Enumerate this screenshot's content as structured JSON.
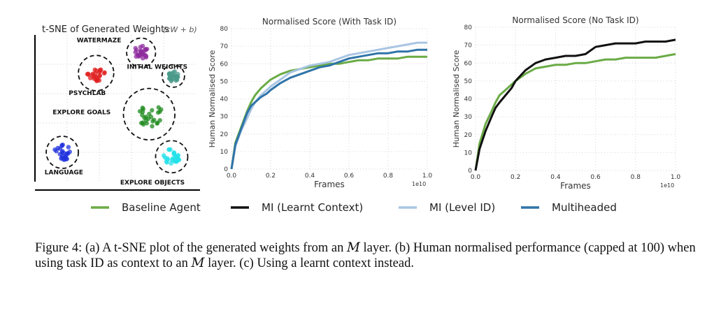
{
  "chart_data": [
    {
      "type": "scatter",
      "title": "t-SNE of Generated Weights",
      "title_formula": "(cW + b)",
      "clusters": [
        {
          "label": "WATERMAZE",
          "color": "#8e2b9e",
          "cx": 0.66,
          "cy": 0.88,
          "r": 0.09
        },
        {
          "label": "INITIAL WEIGHTS",
          "color": "#4a9a8a",
          "cx": 0.86,
          "cy": 0.72,
          "r": 0.07
        },
        {
          "label": "PSYCHLAB",
          "color": "#e02020",
          "cx": 0.38,
          "cy": 0.74,
          "r": 0.11
        },
        {
          "label": "EXPLORE GOALS",
          "color": "#1e8a1e",
          "cx": 0.71,
          "cy": 0.46,
          "r": 0.16
        },
        {
          "label": "LANGUAGE",
          "color": "#2233dd",
          "cx": 0.17,
          "cy": 0.2,
          "r": 0.1
        },
        {
          "label": "EXPLORE OBJECTS",
          "color": "#22e0e8",
          "cx": 0.85,
          "cy": 0.17,
          "r": 0.1
        }
      ]
    },
    {
      "type": "line",
      "title": "Normalised Score (With Task ID)",
      "xlabel": "Frames",
      "ylabel": "Human Normalised Score",
      "x_exponent": "1e10",
      "xlim": [
        0,
        1.0
      ],
      "ylim": [
        0,
        80
      ],
      "xticks": [
        "0.0",
        "0.2",
        "0.4",
        "0.6",
        "0.8",
        "1.0"
      ],
      "yticks": [
        "0",
        "10",
        "20",
        "30",
        "40",
        "50",
        "60",
        "70",
        "80"
      ],
      "x": [
        0,
        0.02,
        0.05,
        0.08,
        0.1,
        0.12,
        0.15,
        0.18,
        0.2,
        0.25,
        0.3,
        0.35,
        0.4,
        0.45,
        0.5,
        0.55,
        0.6,
        0.65,
        0.7,
        0.75,
        0.8,
        0.85,
        0.9,
        0.95,
        1.0
      ],
      "series": [
        {
          "name": "Baseline Agent",
          "color": "#6aab46",
          "values": [
            0,
            15,
            24,
            33,
            38,
            42,
            46,
            49,
            51,
            54,
            56,
            57,
            58,
            59,
            60,
            60,
            61,
            62,
            62,
            63,
            63,
            63,
            64,
            64,
            64
          ]
        },
        {
          "name": "MI (Level ID)",
          "color": "#a9c5e3",
          "values": [
            0,
            13,
            22,
            29,
            34,
            38,
            42,
            45,
            47,
            51,
            55,
            57,
            59,
            60,
            61,
            63,
            65,
            66,
            67,
            68,
            69,
            70,
            71,
            72,
            72
          ]
        },
        {
          "name": "Multiheaded",
          "color": "#2f74a8",
          "values": [
            0,
            14,
            23,
            32,
            36,
            38,
            41,
            43,
            45,
            49,
            52,
            54,
            56,
            58,
            59,
            61,
            63,
            64,
            65,
            66,
            66,
            67,
            67,
            68,
            68
          ]
        }
      ]
    },
    {
      "type": "line",
      "title": "Normalised Score (No Task ID)",
      "xlabel": "Frames",
      "ylabel": "Human Normalised Score",
      "x_exponent": "1e10",
      "xlim": [
        0,
        1.0
      ],
      "ylim": [
        0,
        80
      ],
      "xticks": [
        "0.0",
        "0.2",
        "0.4",
        "0.6",
        "0.8",
        "1.0"
      ],
      "yticks": [
        "0",
        "10",
        "20",
        "30",
        "40",
        "50",
        "60",
        "70",
        "80"
      ],
      "x": [
        0,
        0.02,
        0.05,
        0.08,
        0.1,
        0.12,
        0.15,
        0.18,
        0.2,
        0.25,
        0.3,
        0.35,
        0.4,
        0.45,
        0.5,
        0.55,
        0.6,
        0.65,
        0.7,
        0.75,
        0.8,
        0.85,
        0.9,
        0.95,
        1.0
      ],
      "series": [
        {
          "name": "Baseline Agent",
          "color": "#6aab46",
          "values": [
            0,
            15,
            26,
            33,
            38,
            42,
            45,
            48,
            50,
            54,
            57,
            58,
            59,
            59,
            60,
            60,
            61,
            62,
            62,
            63,
            63,
            63,
            63,
            64,
            65
          ]
        },
        {
          "name": "MI (Learnt Context)",
          "color": "#111111",
          "values": [
            0,
            12,
            22,
            30,
            35,
            38,
            42,
            46,
            50,
            56,
            60,
            62,
            63,
            64,
            64,
            65,
            69,
            70,
            71,
            71,
            71,
            72,
            72,
            72,
            73
          ]
        }
      ]
    }
  ],
  "legend": [
    {
      "name": "Baseline Agent",
      "color": "#6aab46"
    },
    {
      "name": "MI (Learnt Context)",
      "color": "#111111"
    },
    {
      "name": "MI (Level ID)",
      "color": "#a9c5e3"
    },
    {
      "name": "Multiheaded",
      "color": "#2f74a8"
    }
  ],
  "caption": {
    "line1_a": "Figure 4: (a) A t-SNE plot of the generated weights from an",
    "m_symbol": "M",
    "line1_b": "layer.  (b) Human normalised",
    "line2_a": "performance (capped at 100) when using task ID as context to an",
    "line2_b": "layer. (c) Using a learnt context",
    "line3": "instead."
  }
}
